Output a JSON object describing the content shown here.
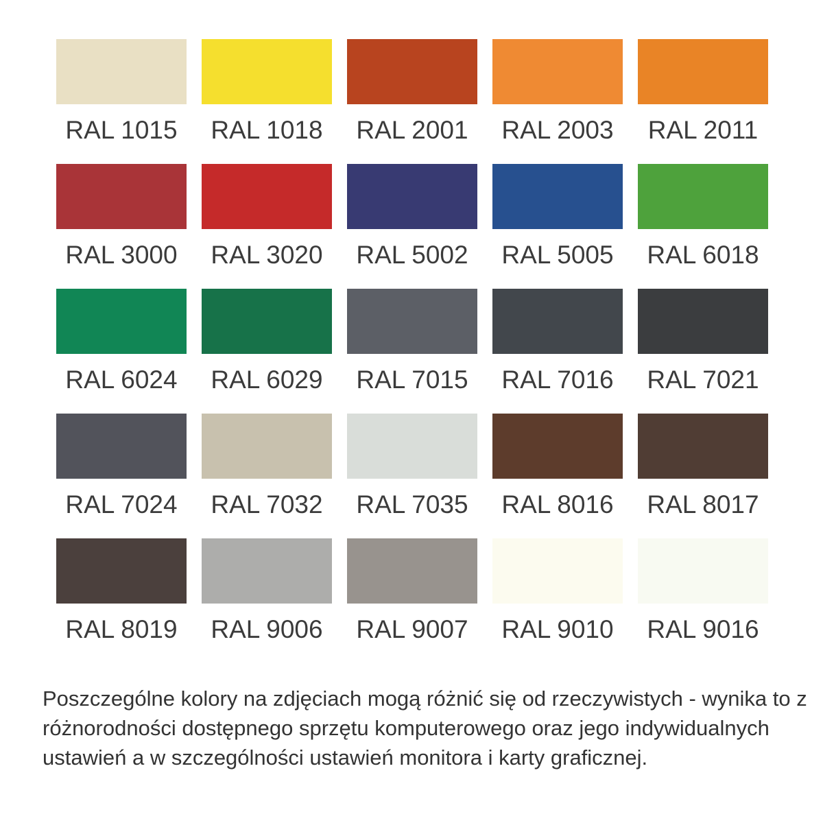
{
  "page": {
    "background": "#FFFFFF"
  },
  "palette": {
    "label_color": "#3B3B3B",
    "columns": 5,
    "rows": 5,
    "swatches": [
      {
        "code": "RAL 1015",
        "hex": "#E9E0C4"
      },
      {
        "code": "RAL 1018",
        "hex": "#F5DF2E"
      },
      {
        "code": "RAL 2001",
        "hex": "#B8441F"
      },
      {
        "code": "RAL 2003",
        "hex": "#EF8A33"
      },
      {
        "code": "RAL 2011",
        "hex": "#E98426"
      },
      {
        "code": "RAL 3000",
        "hex": "#A93438"
      },
      {
        "code": "RAL 3020",
        "hex": "#C52A2A"
      },
      {
        "code": "RAL 5002",
        "hex": "#383A72"
      },
      {
        "code": "RAL 5005",
        "hex": "#27508F"
      },
      {
        "code": "RAL 6018",
        "hex": "#4EA23C"
      },
      {
        "code": "RAL 6024",
        "hex": "#118655"
      },
      {
        "code": "RAL 6029",
        "hex": "#177249"
      },
      {
        "code": "RAL 7015",
        "hex": "#5C5F66"
      },
      {
        "code": "RAL 7016",
        "hex": "#42474C"
      },
      {
        "code": "RAL 7021",
        "hex": "#3B3D3F"
      },
      {
        "code": "RAL 7024",
        "hex": "#52535B"
      },
      {
        "code": "RAL 7032",
        "hex": "#C8C1AE"
      },
      {
        "code": "RAL 7035",
        "hex": "#D9DDD9"
      },
      {
        "code": "RAL 8016",
        "hex": "#5D3C2C"
      },
      {
        "code": "RAL 8017",
        "hex": "#503D34"
      },
      {
        "code": "RAL 8019",
        "hex": "#4B403D"
      },
      {
        "code": "RAL 9006",
        "hex": "#ADADAB"
      },
      {
        "code": "RAL 9007",
        "hex": "#98938E"
      },
      {
        "code": "RAL 9010",
        "hex": "#FCFBEF"
      },
      {
        "code": "RAL 9016",
        "hex": "#F8FAF2"
      }
    ]
  },
  "disclaimer": {
    "text_color": "#333333",
    "lines": [
      "Poszczególne kolory na zdjęciach mogą różnić się od rzeczywistych - wynika to z",
      "różnorodności dostępnego sprzętu komputerowego oraz jego indywidualnych",
      "ustawień a w szczególności ustawień monitora i karty graficznej."
    ]
  }
}
